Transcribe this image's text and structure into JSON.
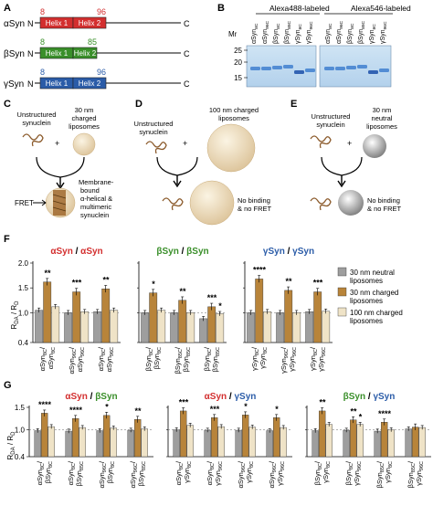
{
  "panels": {
    "A": "A",
    "B": "B",
    "C": "C",
    "D": "D",
    "E": "E",
    "F": "F",
    "G": "G"
  },
  "panelA": {
    "proteins": [
      {
        "name": "αSyn",
        "n": "N",
        "c": "C",
        "helix1": "Helix 1",
        "helix2": "Helix 2",
        "start": "8",
        "end": "96",
        "color": "#d32f2f"
      },
      {
        "name": "βSyn",
        "n": "N",
        "c": "C",
        "helix1": "Helix 1",
        "helix2": "Helix 2",
        "start": "8",
        "end": "85",
        "color": "#3a8f2a"
      },
      {
        "name": "γSyn",
        "n": "N",
        "c": "C",
        "helix1": "Helix 1",
        "helix2": "Helix 2",
        "start": "8",
        "end": "96",
        "color": "#2b5ca8"
      }
    ]
  },
  "panelB": {
    "mr": "Mr",
    "markers": [
      "25",
      "20",
      "15"
    ],
    "gel1_title": "Alexa488-labeled",
    "gel2_title": "Alexa546-labeled",
    "lanes": [
      "αSyn8C",
      "αSyn96C",
      "βSyn8C",
      "βSyn85C",
      "γSyn8C",
      "γSyn96C"
    ]
  },
  "panelC": {
    "left": "Unstructured synuclein",
    "plus": "+",
    "right": "30 nm charged liposomes",
    "fret": "FRET",
    "result": "Membrane-bound α-helical & multimeric synuclein"
  },
  "panelD": {
    "left": "Unstructured synuclein",
    "plus": "+",
    "right": "100 nm charged liposomes",
    "result": "No binding & no FRET"
  },
  "panelE": {
    "left": "Unstructured synuclein",
    "plus": "+",
    "right": "30 nm neutral liposomes",
    "result": "No binding & no FRET"
  },
  "panelF": {
    "groups": [
      {
        "a": "αSyn",
        "slash": "/",
        "b": "αSyn",
        "ca": "#d32f2f",
        "cb": "#d32f2f"
      },
      {
        "a": "βSyn",
        "slash": "/",
        "b": "βSyn",
        "ca": "#3a8f2a",
        "cb": "#3a8f2a"
      },
      {
        "a": "γSyn",
        "slash": "/",
        "b": "γSyn",
        "ca": "#2b5ca8",
        "cb": "#2b5ca8"
      }
    ],
    "legend": [
      "30 nm neutral liposomes",
      "30 nm charged liposomes",
      "100 nm charged liposomes"
    ],
    "ylabel": "R_DA / R_D"
  },
  "panelG": {
    "groups": [
      {
        "a": "αSyn",
        "slash": "/",
        "b": "βSyn",
        "ca": "#d32f2f",
        "cb": "#3a8f2a"
      },
      {
        "a": "αSyn",
        "slash": "/",
        "b": "γSyn",
        "ca": "#d32f2f",
        "cb": "#2b5ca8"
      },
      {
        "a": "βSyn",
        "slash": "/",
        "b": "γSyn",
        "ca": "#3a8f2a",
        "cb": "#2b5ca8"
      }
    ],
    "ylabel": "R_DA / R_D"
  },
  "colors": {
    "neutral": "#9e9e9e",
    "charged": "#b8843a",
    "large": "#efe3c7"
  },
  "chart_data": [
    {
      "type": "bar",
      "ylim": [
        0.4,
        2.0
      ],
      "yticks": [
        "0.4",
        "1.0",
        "1.5",
        "2.0"
      ],
      "groups": [
        {
          "categories": [
            [
              "αSyn8C",
              "αSyn8C"
            ],
            [
              "αSyn96C",
              "αSyn96C"
            ],
            [
              "αSyn8C",
              "αSyn96C"
            ]
          ],
          "series": [
            {
              "name": "30 nm neutral liposomes",
              "values": [
                1.05,
                1.0,
                1.02
              ]
            },
            {
              "name": "30 nm charged liposomes",
              "values": [
                1.62,
                1.42,
                1.48
              ]
            },
            {
              "name": "100 nm charged liposomes",
              "values": [
                1.12,
                1.02,
                1.05
              ]
            }
          ],
          "sig": [
            "**",
            "***",
            "**"
          ]
        },
        {
          "categories": [
            [
              "βSyn8C",
              "βSyn8C"
            ],
            [
              "βSyn85C",
              "βSyn85C"
            ],
            [
              "βSyn8C",
              "βSyn85C"
            ]
          ],
          "series": [
            {
              "name": "30 nm neutral liposomes",
              "values": [
                1.0,
                1.0,
                0.88
              ]
            },
            {
              "name": "30 nm charged liposomes",
              "values": [
                1.4,
                1.25,
                1.12
              ]
            },
            {
              "name": "100 nm charged liposomes",
              "values": [
                1.05,
                1.0,
                0.98
              ]
            }
          ],
          "sig": [
            "*",
            "**",
            "***"
          ],
          "sig2": [
            null,
            null,
            "*"
          ]
        },
        {
          "categories": [
            [
              "γSyn8C",
              "γSyn8C"
            ],
            [
              "γSyn96C",
              "γSyn96C"
            ],
            [
              "γSyn8C",
              "γSyn96C"
            ]
          ],
          "series": [
            {
              "name": "30 nm neutral liposomes",
              "values": [
                1.0,
                1.0,
                1.02
              ]
            },
            {
              "name": "30 nm charged liposomes",
              "values": [
                1.68,
                1.45,
                1.42
              ]
            },
            {
              "name": "100 nm charged liposomes",
              "values": [
                1.02,
                1.0,
                1.03
              ]
            }
          ],
          "sig": [
            "****",
            "**",
            "***"
          ]
        }
      ]
    },
    {
      "type": "bar",
      "ylim": [
        0.4,
        1.5
      ],
      "yticks": [
        "0.4",
        "1.0",
        "1.5"
      ],
      "groups": [
        {
          "categories": [
            [
              "αSyn8C",
              "βSyn8C"
            ],
            [
              "αSyn8C",
              "βSyn85C"
            ],
            [
              "αSyn96C",
              "βSyn8C"
            ],
            [
              "αSyn96C",
              "βSyn85C"
            ]
          ],
          "series": [
            {
              "name": "30 nm neutral liposomes",
              "values": [
                0.98,
                0.97,
                0.98,
                0.99
              ]
            },
            {
              "name": "30 nm charged liposomes",
              "values": [
                1.37,
                1.25,
                1.32,
                1.23
              ]
            },
            {
              "name": "100 nm charged liposomes",
              "values": [
                1.07,
                1.05,
                1.04,
                1.02
              ]
            }
          ],
          "sig": [
            "****",
            "****",
            "*",
            "**"
          ]
        },
        {
          "categories": [
            [
              "αSyn8C",
              "γSyn8C"
            ],
            [
              "αSyn8C",
              "γSyn96C"
            ],
            [
              "αSyn96C",
              "γSyn8C"
            ],
            [
              "αSyn96C",
              "γSyn96C"
            ]
          ],
          "series": [
            {
              "name": "30 nm neutral liposomes",
              "values": [
                1.0,
                0.99,
                0.99,
                0.98
              ]
            },
            {
              "name": "30 nm charged liposomes",
              "values": [
                1.42,
                1.27,
                1.33,
                1.27
              ]
            },
            {
              "name": "100 nm charged liposomes",
              "values": [
                1.1,
                1.07,
                1.06,
                1.05
              ]
            }
          ],
          "sig": [
            "***",
            "***",
            "*",
            "*"
          ]
        },
        {
          "categories": [
            [
              "βSyn8C",
              "γSyn8C"
            ],
            [
              "βSyn8C",
              "γSyn96C"
            ],
            [
              "βSyn85C",
              "γSyn8C"
            ],
            [
              "βSyn85C",
              "γSyn96C"
            ]
          ],
          "series": [
            {
              "name": "30 nm neutral liposomes",
              "values": [
                0.98,
                0.99,
                0.97,
                1.02
              ]
            },
            {
              "name": "30 nm charged liposomes",
              "values": [
                1.42,
                1.22,
                1.17,
                1.06
              ]
            },
            {
              "name": "100 nm charged liposomes",
              "values": [
                1.12,
                1.12,
                1.0,
                1.05
              ]
            }
          ],
          "sig": [
            "**",
            "**",
            "****",
            null
          ],
          "sig2": [
            null,
            "*",
            null,
            null
          ]
        }
      ]
    }
  ]
}
